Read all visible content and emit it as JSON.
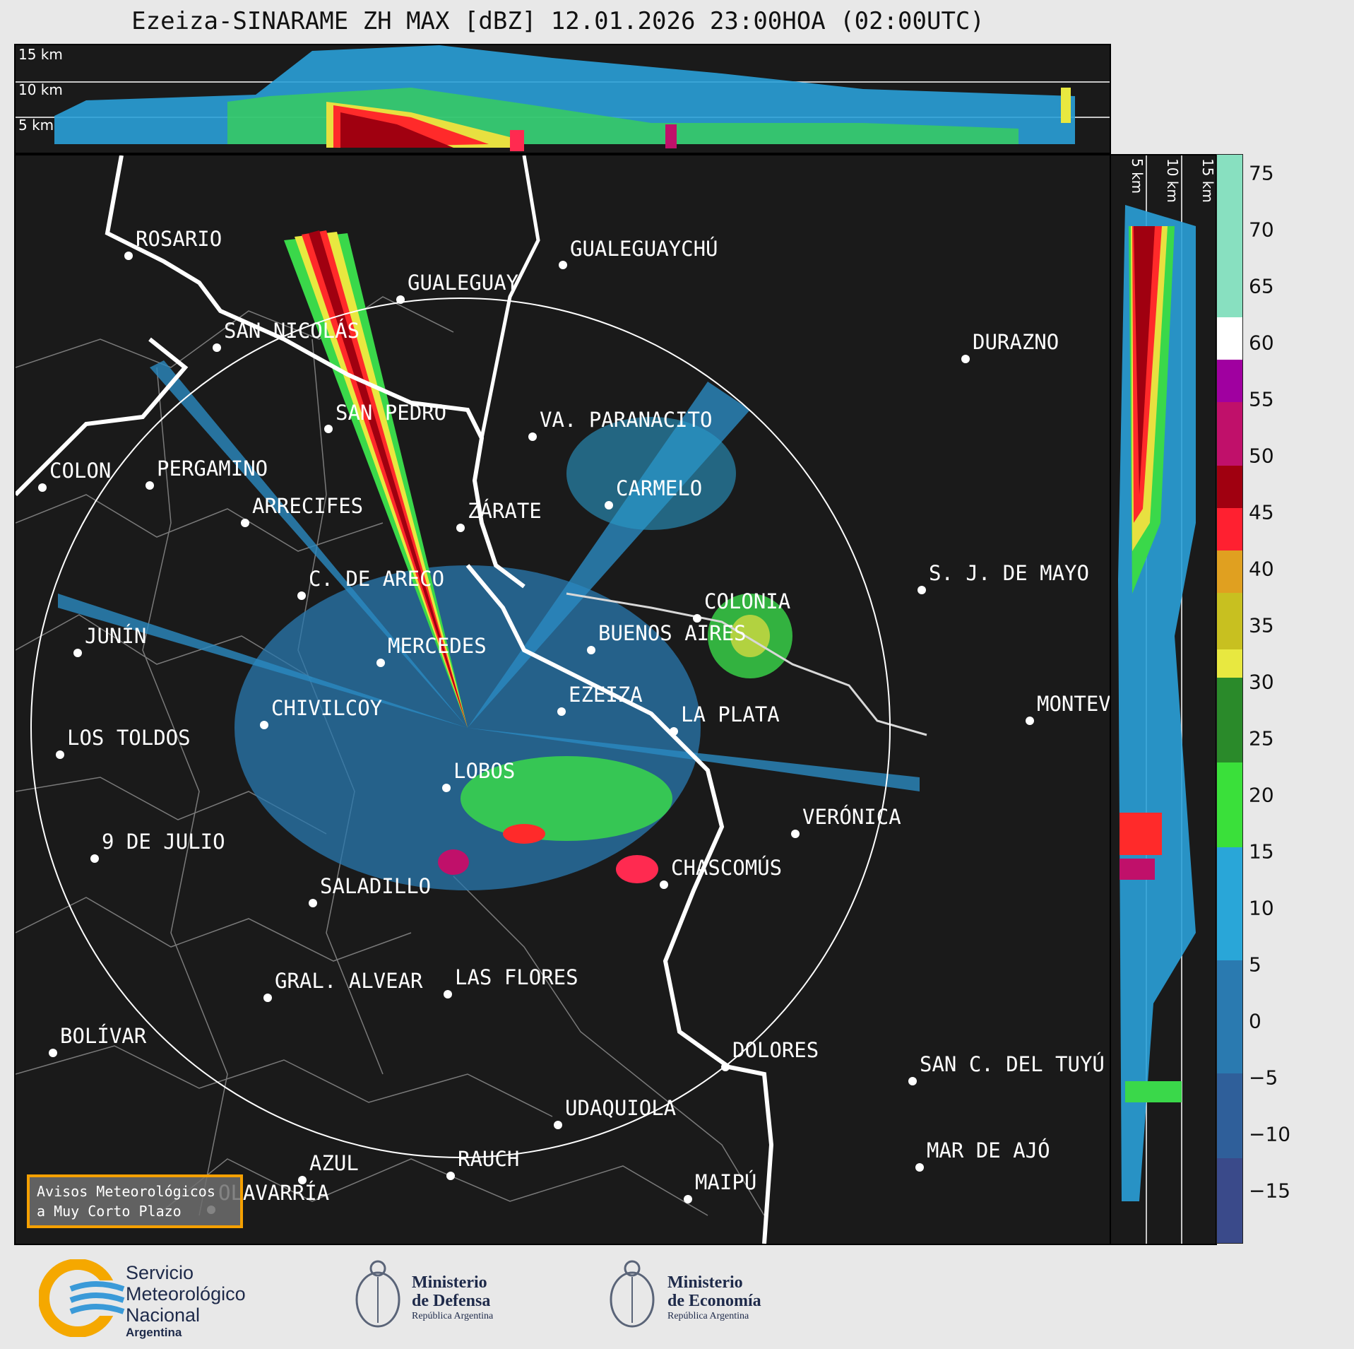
{
  "title": "Ezeiza-SINARAME ZH MAX [dBZ] 12.01.2026 23:00HOA (02:00UTC)",
  "top_panel": {
    "altitude_labels": [
      "15 km",
      "10 km",
      "5 km"
    ]
  },
  "side_panel": {
    "altitude_labels": [
      "5 km",
      "10 km",
      "15 km"
    ]
  },
  "cities": [
    {
      "name": "ROSARIO"
    },
    {
      "name": "GUALEGUAYCHÚ"
    },
    {
      "name": "GUALEGUAY"
    },
    {
      "name": "SAN NICOLÁS"
    },
    {
      "name": "DURAZNO"
    },
    {
      "name": "SAN PEDRO"
    },
    {
      "name": "VA. PARANACITO"
    },
    {
      "name": "COLON"
    },
    {
      "name": "PERGAMINO"
    },
    {
      "name": "CARMELO"
    },
    {
      "name": "ARRECIFES"
    },
    {
      "name": "ZÁRATE"
    },
    {
      "name": "S. J. DE MAYO"
    },
    {
      "name": "C. DE ARECO"
    },
    {
      "name": "COLONIA"
    },
    {
      "name": "JUNÍN"
    },
    {
      "name": "BUENOS AIRES"
    },
    {
      "name": "MERCEDES"
    },
    {
      "name": "EZEIZA"
    },
    {
      "name": "MONTEVIDEO"
    },
    {
      "name": "CHIVILCOY"
    },
    {
      "name": "LA PLATA"
    },
    {
      "name": "LOS TOLDOS"
    },
    {
      "name": "LOBOS"
    },
    {
      "name": "VERÓNICA"
    },
    {
      "name": "9 DE JULIO"
    },
    {
      "name": "CHASCOMÚS"
    },
    {
      "name": "SALADILLO"
    },
    {
      "name": "GRAL. ALVEAR"
    },
    {
      "name": "LAS FLORES"
    },
    {
      "name": "BOLÍVAR"
    },
    {
      "name": "DOLORES"
    },
    {
      "name": "SAN C. DEL TUYÚ"
    },
    {
      "name": "UDAQUIOLA"
    },
    {
      "name": "MAR DE AJÓ"
    },
    {
      "name": "AZUL"
    },
    {
      "name": "RAUCH"
    },
    {
      "name": "OLAVARRÍA"
    },
    {
      "name": "MAIPÚ"
    }
  ],
  "colorbar": {
    "unit": "dBZ",
    "ticks": [
      "75",
      "70",
      "65",
      "60",
      "55",
      "50",
      "45",
      "40",
      "35",
      "30",
      "25",
      "20",
      "15",
      "10",
      "5",
      "0",
      "−5",
      "−10",
      "−15"
    ],
    "colors": [
      "#2f2f5a",
      "#3a4a8a",
      "#2f5f9a",
      "#2a7ab0",
      "#29a6d8",
      "#3ae03a",
      "#2a8a2a",
      "#e8e840",
      "#c8c020",
      "#e0a020",
      "#e05020",
      "#ff2030",
      "#a00010",
      "#c0106a",
      "#ff00ff",
      "#a000a0",
      "#ffffff",
      "#d0f0e0",
      "#88e0c0"
    ]
  },
  "warning_box": {
    "line1": "Avisos Meteorológicos",
    "line2": "a Muy Corto Plazo"
  },
  "logos": {
    "smn": {
      "line1": "Servicio",
      "line2": "Meteorológico",
      "line3": "Nacional",
      "line4": "Argentina"
    },
    "defensa": {
      "line1": "Ministerio",
      "line2": "de Defensa",
      "line3": "República Argentina"
    },
    "economia": {
      "line1": "Ministerio",
      "line2": "de Economía",
      "line3": "República Argentina"
    }
  }
}
